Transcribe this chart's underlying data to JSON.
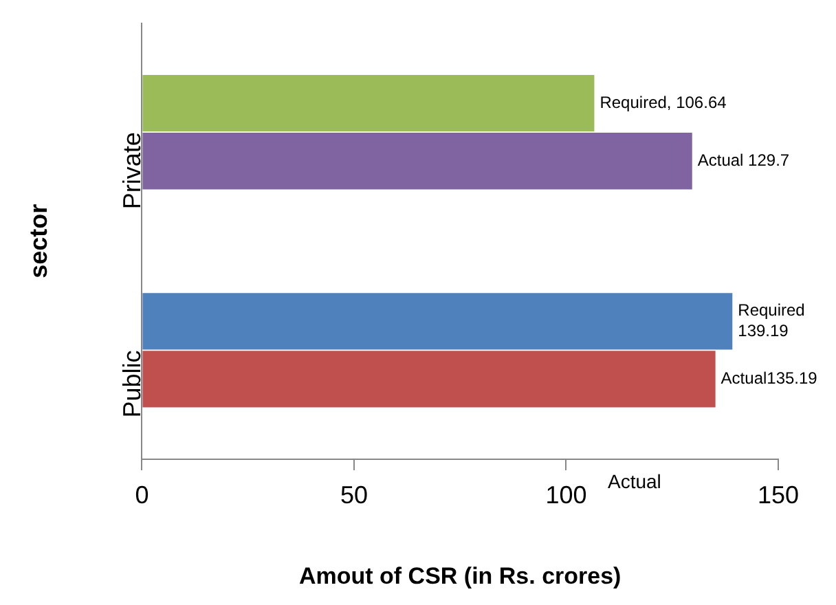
{
  "chart_data": {
    "type": "bar",
    "orientation": "horizontal",
    "xlabel": "Amout of CSR (in Rs. crores)",
    "ylabel": "sector",
    "categories": [
      "Private",
      "Public"
    ],
    "series": [
      {
        "colors": [
          "#9bbb59",
          "#4f81bd"
        ],
        "values": [
          106.64,
          139.19
        ],
        "value_labels": [
          "Required, 106.64",
          "Required\n139.19"
        ]
      },
      {
        "colors": [
          "#8064a2",
          "#c0504d"
        ],
        "values": [
          129.7,
          135.19
        ],
        "value_labels": [
          "Actual 129.7",
          "Actual135.19"
        ]
      }
    ],
    "xlim": [
      0,
      150
    ],
    "xticks": [
      0,
      50,
      100,
      150
    ],
    "grid": false,
    "legend": false,
    "annotations": [
      "Actual"
    ]
  }
}
